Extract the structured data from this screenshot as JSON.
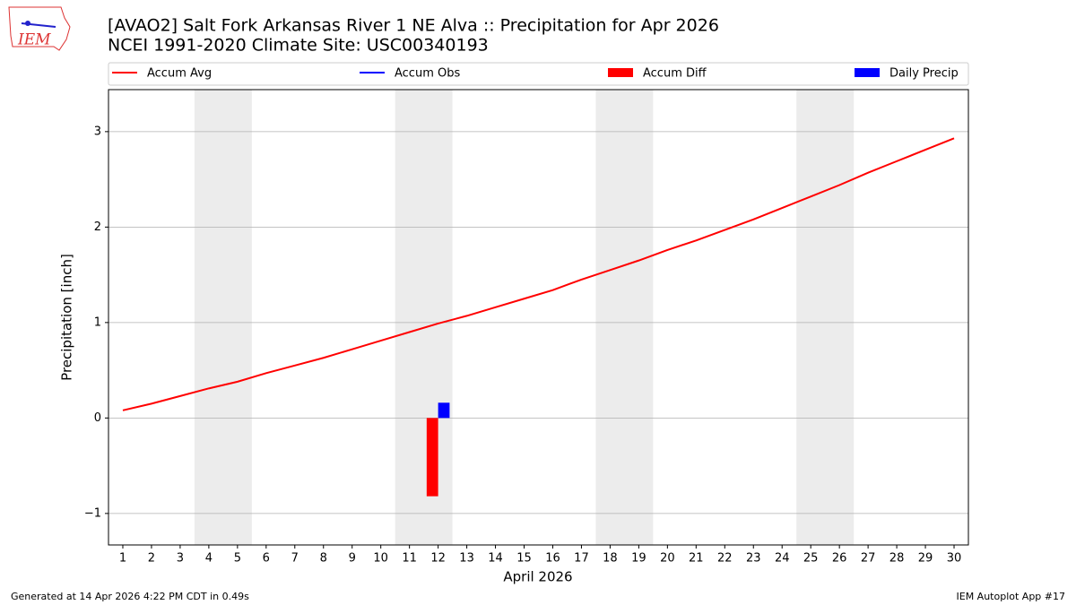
{
  "chart_data": {
    "type": "line",
    "logo_text": "IEM",
    "title": "[AVAO2] Salt Fork Arkansas River 1 NE Alva :: Precipitation for Apr 2026",
    "subtitle": "NCEI 1991-2020 Climate Site: USC00340193",
    "xlabel": "April 2026",
    "ylabel": "Precipitation [inch]",
    "footer_left": "Generated at 14 Apr 2026 4:22 PM CDT in 0.49s",
    "footer_right": "IEM Autoplot App #17",
    "x": [
      1,
      2,
      3,
      4,
      5,
      6,
      7,
      8,
      9,
      10,
      11,
      12,
      13,
      14,
      15,
      16,
      17,
      18,
      19,
      20,
      21,
      22,
      23,
      24,
      25,
      26,
      27,
      28,
      29,
      30
    ],
    "xlim": [
      0.5,
      30.5
    ],
    "xticks": [
      1,
      2,
      3,
      4,
      5,
      6,
      7,
      8,
      9,
      10,
      11,
      12,
      13,
      14,
      15,
      16,
      17,
      18,
      19,
      20,
      21,
      22,
      23,
      24,
      25,
      26,
      27,
      28,
      29,
      30
    ],
    "ylim": [
      -1.33,
      3.44
    ],
    "yticks": [
      {
        "value": -1,
        "label": "−1"
      },
      0,
      1,
      2,
      3
    ],
    "grid": true,
    "shaded_x": [
      [
        3.5,
        5.5
      ],
      [
        10.5,
        12.5
      ],
      [
        17.5,
        19.5
      ],
      [
        24.5,
        26.5
      ]
    ],
    "shade_color": "#ececec",
    "series": [
      {
        "name": "Accum Avg",
        "kind": "line",
        "color": "#ff0000",
        "values": [
          0.08,
          0.15,
          0.23,
          0.31,
          0.38,
          0.47,
          0.55,
          0.63,
          0.72,
          0.81,
          0.9,
          0.99,
          1.07,
          1.16,
          1.25,
          1.34,
          1.45,
          1.55,
          1.65,
          1.76,
          1.86,
          1.97,
          2.08,
          2.2,
          2.32,
          2.44,
          2.57,
          2.69,
          2.81,
          2.93
        ]
      },
      {
        "name": "Accum Obs",
        "kind": "line",
        "color": "#0000ff",
        "values": [
          null,
          null,
          null,
          null,
          null,
          null,
          null,
          null,
          null,
          null,
          null,
          null,
          null,
          null,
          null,
          null,
          null,
          null,
          null,
          null,
          null,
          null,
          null,
          null,
          null,
          null,
          null,
          null,
          null,
          null
        ]
      },
      {
        "name": "Accum Diff",
        "kind": "bar",
        "color": "#ff0000",
        "values": [
          null,
          null,
          null,
          null,
          null,
          null,
          null,
          null,
          null,
          null,
          null,
          -0.82,
          null,
          null,
          null,
          null,
          null,
          null,
          null,
          null,
          null,
          null,
          null,
          null,
          null,
          null,
          null,
          null,
          null,
          null
        ]
      },
      {
        "name": "Daily Precip",
        "kind": "bar",
        "color": "#0000ff",
        "values": [
          null,
          null,
          null,
          null,
          null,
          null,
          null,
          null,
          null,
          null,
          null,
          0.16,
          null,
          null,
          null,
          null,
          null,
          null,
          null,
          null,
          null,
          null,
          null,
          null,
          null,
          null,
          null,
          null,
          null,
          null
        ]
      }
    ]
  }
}
